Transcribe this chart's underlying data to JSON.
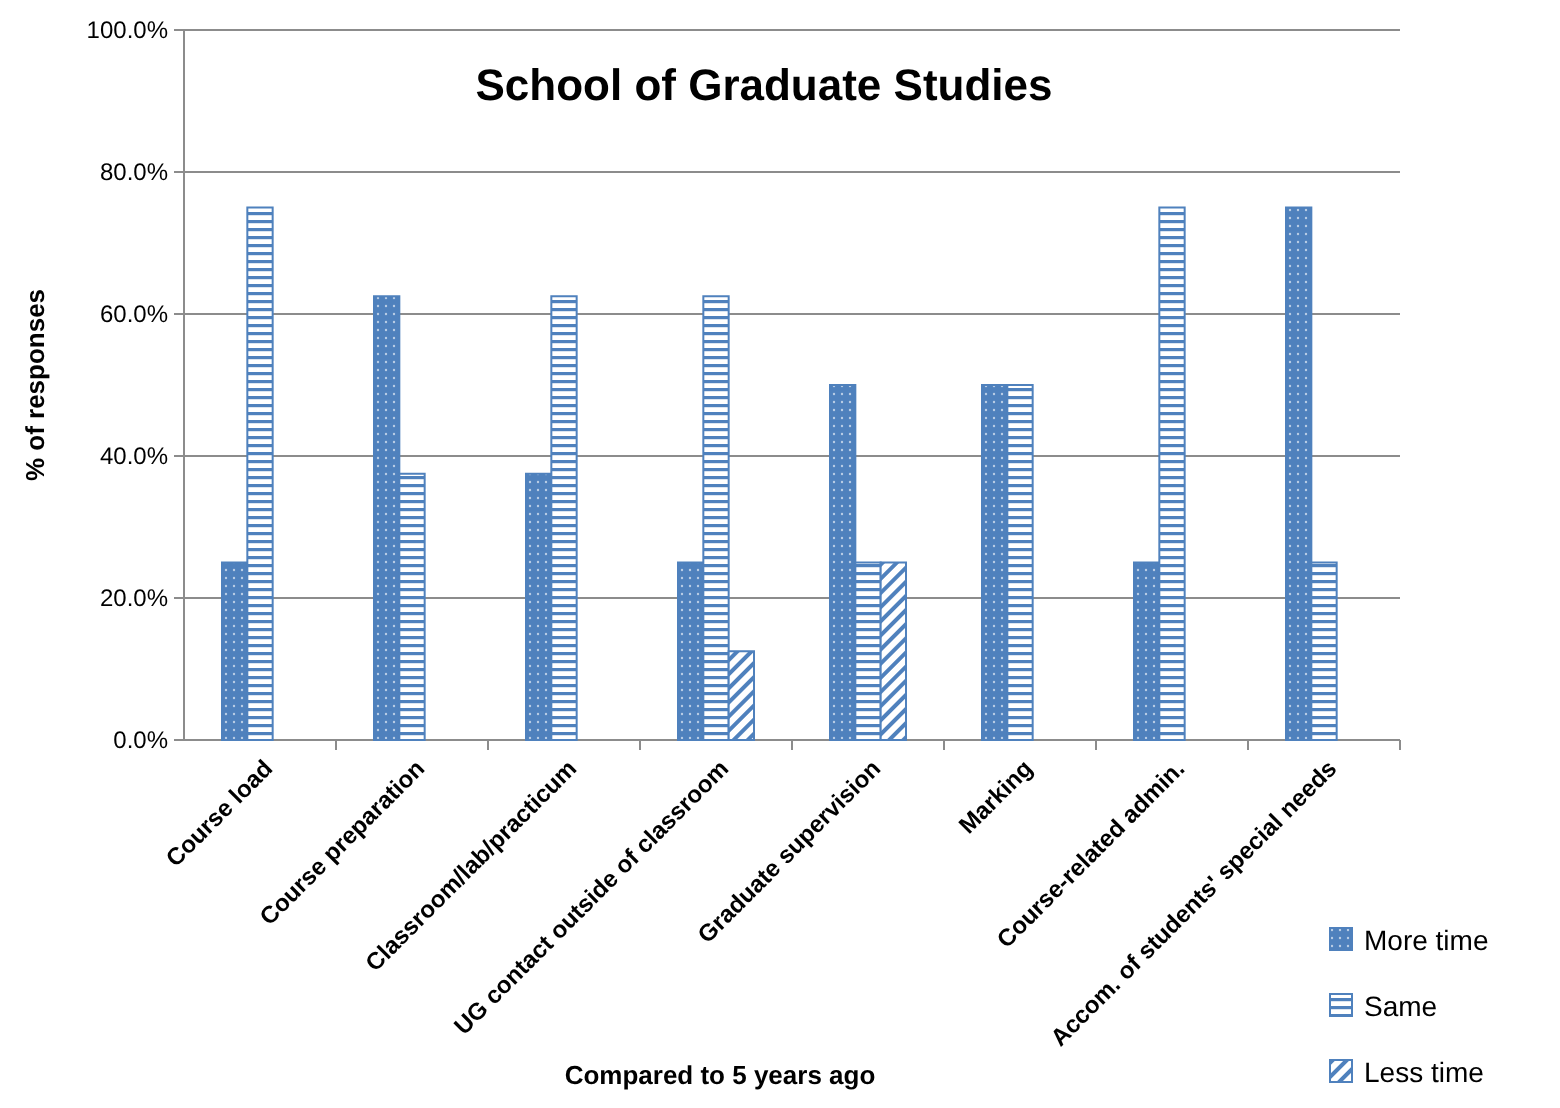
{
  "chart_data": {
    "type": "bar",
    "title": "School of Graduate Studies",
    "xlabel": "Compared to 5 years ago",
    "ylabel": "% of responses",
    "categories": [
      "Course load",
      "Course preparation",
      "Classroom/lab/practicum",
      "UG contact outside of classroom",
      "Graduate supervision",
      "Marking",
      "Course-related admin.",
      "Accom. of students' special needs"
    ],
    "series": [
      {
        "name": "More time",
        "color": "#4f81bd",
        "values": [
          25,
          62.5,
          37.5,
          25,
          50,
          50,
          25,
          75
        ]
      },
      {
        "name": "Same",
        "color": "#4f81bd",
        "values": [
          75,
          37.5,
          62.5,
          62.5,
          25,
          50,
          75,
          25
        ]
      },
      {
        "name": "Less time",
        "color": "#4f81bd",
        "values": [
          0,
          0,
          0,
          12.5,
          25,
          0,
          0,
          0
        ]
      }
    ],
    "ylim": [
      0,
      100
    ],
    "yticks": [
      {
        "value": 0,
        "label": "0.0%"
      },
      {
        "value": 20,
        "label": "20.0%"
      },
      {
        "value": 40,
        "label": "40.0%"
      },
      {
        "value": 60,
        "label": "60.0%"
      },
      {
        "value": 80,
        "label": "80.0%"
      },
      {
        "value": 100,
        "label": "100.0%"
      }
    ],
    "grid": "y",
    "legend": "bottom right"
  }
}
